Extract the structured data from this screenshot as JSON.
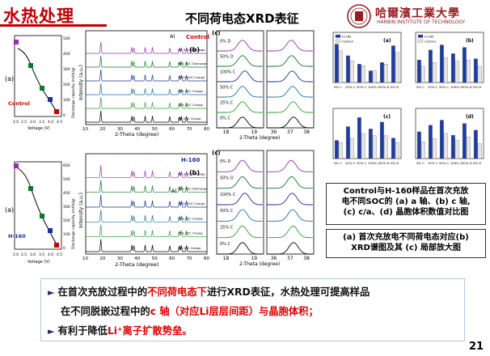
{
  "header": {
    "title": "水热处理",
    "subtitle": "不同荷电态XRD表征",
    "university_cn": "哈爾濱工業大學",
    "university_en": "HARBIN INSTITUTE OF TECHNOLOGY"
  },
  "voltage_panels": [
    {
      "label": "(a)",
      "sample": "Control",
      "xlabel": "Voltage (V)",
      "ylabel": "Discharge capacity (mAh/g)",
      "xticks": [
        "2.0",
        "2.5",
        "3.0",
        "3.5",
        "4.0",
        "4.5"
      ],
      "yticks": [
        "0",
        "100",
        "200",
        "300",
        "400",
        "500"
      ]
    },
    {
      "label": "(a)",
      "sample": "H-160",
      "xlabel": "Voltage (V)",
      "ylabel": "Discharge capacity (mAh/g)",
      "xticks": [
        "2.0",
        "2.5",
        "3.0",
        "3.5",
        "4.0",
        "4.5"
      ],
      "yticks": [
        "0",
        "100",
        "200",
        "300",
        "400",
        "500",
        "600"
      ]
    }
  ],
  "xrd_panels": [
    {
      "label": "(b)",
      "sample": "Control",
      "peak_label": "Al",
      "xlabel": "2-Theta (degree)",
      "ylabel": "Intensity (a.u.)",
      "xticks": [
        "10",
        "20",
        "30",
        "40",
        "50",
        "60",
        "70",
        "80"
      ],
      "traces": [
        "0% SOC Discharge",
        "50% SOC Discharge",
        "100% SOC Charge",
        "50% SOC Charge",
        "25% SOC Charge",
        "0% SOC Charge"
      ]
    },
    {
      "label": "(b)",
      "sample": "H-160",
      "peak_label": "Al",
      "xlabel": "2-Theta (degree)",
      "ylabel": "Intensity (a.u.)",
      "xticks": [
        "10",
        "20",
        "30",
        "40",
        "50",
        "60",
        "70",
        "80"
      ],
      "traces": [
        "0% SOC Discharge",
        "50% SOC Discharge",
        "100% SOC Charge",
        "50% SOC Charge",
        "25% SOC Charge",
        "0% SOC Charge"
      ]
    }
  ],
  "zoom_panels": [
    {
      "label": "(c)",
      "xlabel": "2-Theta (degree)",
      "xticks_left": [
        "18",
        "19"
      ],
      "xticks_right": [
        "36",
        "37",
        "38"
      ],
      "traces": [
        "0% D",
        "50% D",
        "100% C",
        "50% C",
        "25% C",
        "0% C"
      ]
    },
    {
      "label": "(c)",
      "xlabel": "2-Theta (degree)",
      "xticks_left": [
        "18",
        "19"
      ],
      "xticks_right": [
        "36",
        "37",
        "38"
      ],
      "traces": [
        "0% D",
        "50% D",
        "100% C",
        "50% C",
        "25% C",
        "0% C"
      ]
    }
  ],
  "chart_data": [
    {
      "type": "bar",
      "label": "(a)",
      "categories": [
        "0% C",
        "25% C",
        "50% C",
        "100% C",
        "50% D",
        "0% D"
      ],
      "series": [
        {
          "name": "H-160",
          "values": [
            2.858,
            2.851,
            2.846,
            2.842,
            2.847,
            2.857
          ]
        },
        {
          "name": "Control",
          "values": [
            2.854,
            2.848,
            2.845,
            2.842,
            2.846,
            2.853
          ]
        }
      ],
      "ylim": [
        2.835,
        2.865
      ]
    },
    {
      "type": "bar",
      "label": "(b)",
      "categories": [
        "0% C",
        "25% C",
        "50% C",
        "100% C",
        "50% D",
        "0% D"
      ],
      "series": [
        {
          "name": "H-160",
          "values": [
            14.28,
            14.36,
            14.4,
            14.33,
            14.38,
            14.29
          ]
        },
        {
          "name": "Control",
          "values": [
            14.23,
            14.26,
            14.3,
            14.27,
            14.28,
            14.23
          ]
        }
      ],
      "ylim": [
        14.1,
        14.5
      ]
    },
    {
      "type": "bar",
      "label": "(c)",
      "categories": [
        "0% C",
        "25% C",
        "50% C",
        "100% C",
        "50% D",
        "0% D"
      ],
      "series": [
        {
          "name": "H-160",
          "values": [
            4.98,
            5.04,
            5.08,
            5.03,
            5.06,
            4.99
          ]
        },
        {
          "name": "Control",
          "values": [
            4.97,
            4.99,
            5.01,
            5.0,
            5.0,
            4.97
          ]
        }
      ],
      "ylim": [
        4.9,
        5.12
      ]
    },
    {
      "type": "bar",
      "label": "(d)",
      "categories": [
        "0% C",
        "25% C",
        "50% C",
        "100% C",
        "50% D",
        "0% D"
      ],
      "series": [
        {
          "name": "H-160",
          "values": [
            100.6,
            101.0,
            101.3,
            100.4,
            101.1,
            100.7
          ]
        },
        {
          "name": "Control",
          "values": [
            100.0,
            100.2,
            100.5,
            100.1,
            100.3,
            99.9
          ]
        }
      ],
      "ylim": [
        99.0,
        102.0
      ]
    }
  ],
  "bar_colors": {
    "h160": "#1f3ca3",
    "control": "#e6e6e6"
  },
  "info_box_1": {
    "line1": "Control与H-160样品在首次充放",
    "line2": "电不同SOC的 (a) a 轴、(b) c 轴,",
    "line3": "(c) c/a、(d) 晶胞体积数值对比图"
  },
  "info_box_2": {
    "line1": "(a) 首次充放电不同荷电态对应(b)",
    "line2": "XRD谱图及其 (c) 局部放大图"
  },
  "bottom_text": {
    "b1_pre": "在首次充放过程中的",
    "b1_red": "不同荷电态下",
    "b1_post": "进行XRD表征，水热处理可提高样品",
    "b2_pre": "在不同脱嵌过程中的",
    "b2_red": "c 轴（对应Li层层间距）与晶胞体积；",
    "b3_pre": "有利于降低",
    "b3_red": "Li⁺离子扩散势垒。"
  },
  "page_number": "21"
}
